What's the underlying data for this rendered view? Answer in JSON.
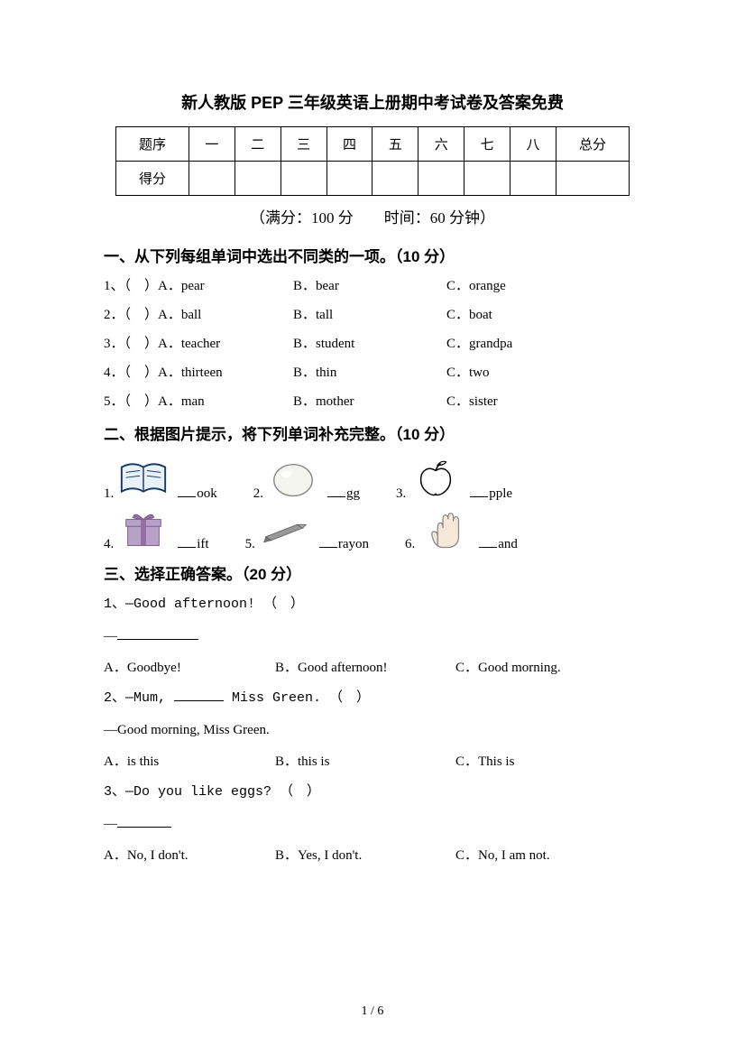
{
  "title": "新人教版 PEP 三年级英语上册期中考试卷及答案免费",
  "score_table": {
    "row1": [
      "题序",
      "一",
      "二",
      "三",
      "四",
      "五",
      "六",
      "七",
      "八",
      "总分"
    ],
    "row2_label": "得分"
  },
  "meta": "（满分：100 分　　时间：60 分钟）",
  "sec1": {
    "head": "一、从下列每组单词中选出不同类的一项。（10 分）",
    "items": [
      {
        "n": "1、（　）A．",
        "a": "pear",
        "b": "B．bear",
        "c": "C．orange"
      },
      {
        "n": "2．（　）A．",
        "a": "ball",
        "b": "B．tall",
        "c": "C．boat"
      },
      {
        "n": "3．（　）A．",
        "a": "teacher",
        "b": "B．student",
        "c": "C．grandpa"
      },
      {
        "n": "4．（　）A．",
        "a": "thirteen",
        "b": "B．thin",
        "c": "C．two"
      },
      {
        "n": "5．（　）A．",
        "a": "man",
        "b": "B．mother",
        "c": "C．sister"
      }
    ]
  },
  "sec2": {
    "head": "二、根据图片提示，将下列单词补充完整。（10 分）",
    "items": [
      {
        "n": "1.",
        "suffix": "ook",
        "icon": "book"
      },
      {
        "n": "2.",
        "suffix": "gg",
        "icon": "egg"
      },
      {
        "n": "3.",
        "suffix": "pple",
        "icon": "apple"
      },
      {
        "n": "4.",
        "suffix": "ift",
        "icon": "gift"
      },
      {
        "n": "5.",
        "suffix": "rayon",
        "icon": "crayon"
      },
      {
        "n": "6.",
        "suffix": "and",
        "icon": "hand"
      }
    ]
  },
  "sec3": {
    "head": "三、选择正确答案。（20 分）",
    "q1": {
      "line": "1、—Good afternoon! （　）",
      "dash_width": 90,
      "a": "A．Goodbye!",
      "b": "B．Good afternoon!",
      "c": "C．Good morning."
    },
    "q2": {
      "pre": "2、—Mum, ",
      "post": " Miss Green. （　）",
      "blank_width": 55,
      "resp": "—Good morning, Miss Green.",
      "a": "A．is this",
      "b": "B．this is",
      "c": "C．This is"
    },
    "q3": {
      "line": "3、—Do you like eggs? （　）",
      "dash_width": 60,
      "a": "A．No, I don't.",
      "b": "B．Yes, I don't.",
      "c": "C．No, I am not."
    }
  },
  "page_num": "1 / 6",
  "colors": {
    "text": "#000000",
    "bg": "#ffffff",
    "border": "#000000",
    "book_fill": "#e8f0f8",
    "book_stroke": "#1a3a6a",
    "egg_fill": "#f5f5f0",
    "egg_stroke": "#888888",
    "apple_stroke": "#000000",
    "gift_body": "#b8a0c8",
    "gift_ribbon": "#9070a0",
    "crayon_body": "#999999",
    "crayon_tip": "#b0b0b0",
    "hand_fill": "#f5e8d8",
    "hand_stroke": "#888888"
  }
}
